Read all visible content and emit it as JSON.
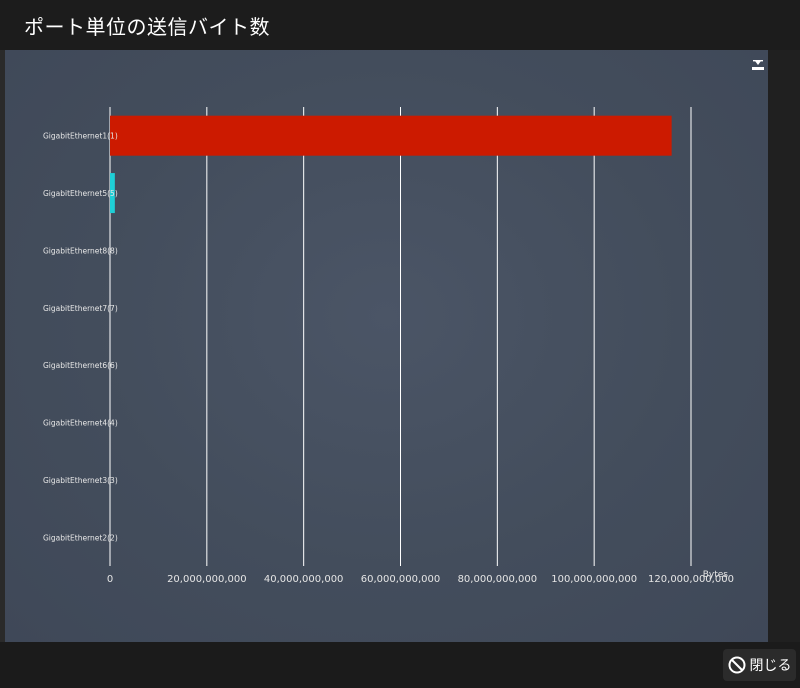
{
  "window": {
    "title": "ポート単位の送信バイト数"
  },
  "footer": {
    "close_label": "閉じる"
  },
  "icons": {
    "download": "download-icon",
    "close": "prohibit-icon"
  },
  "chart_data": {
    "type": "bar",
    "orientation": "horizontal",
    "title": "",
    "xlabel": "Bytes",
    "ylabel": "",
    "xlim": [
      0,
      120000000000
    ],
    "x_ticks": [
      "0",
      "20,000,000,000",
      "40,000,000,000",
      "60,000,000,000",
      "80,000,000,000",
      "100,000,000,000",
      "120,000,000,000"
    ],
    "x_tick_values": [
      0,
      20000000000,
      40000000000,
      60000000000,
      80000000000,
      100000000000,
      120000000000
    ],
    "grid": true,
    "legend": "none",
    "categories": [
      "GigabitEthernet1(1)",
      "GigabitEthernet5(5)",
      "GigabitEthernet8(8)",
      "GigabitEthernet7(7)",
      "GigabitEthernet6(6)",
      "GigabitEthernet4(4)",
      "GigabitEthernet3(3)",
      "GigabitEthernet2(2)"
    ],
    "values": [
      116000000000,
      1000000000,
      0,
      0,
      0,
      0,
      0,
      0
    ],
    "colors": [
      "#cc1a00",
      "#1ecfd6",
      "#cc1a00",
      "#cc1a00",
      "#cc1a00",
      "#cc1a00",
      "#cc1a00",
      "#cc1a00"
    ]
  }
}
